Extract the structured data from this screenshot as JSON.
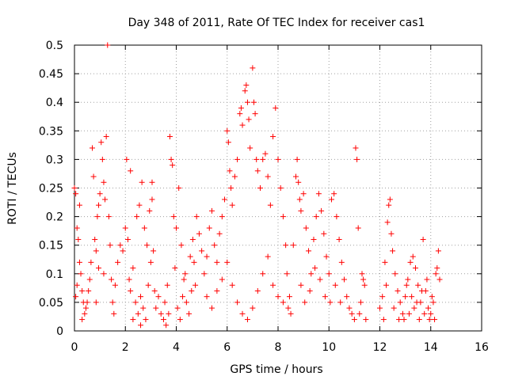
{
  "chart_data": {
    "type": "scatter",
    "title": "Day 348 of 2011, Rate Of TEC Index for receiver cas1",
    "xlabel": "GPS time / hours",
    "ylabel": "ROTI / TECUs",
    "xlim": [
      0,
      16
    ],
    "ylim": [
      0,
      0.5
    ],
    "xticks": [
      "0",
      "2",
      "4",
      "6",
      "8",
      "10",
      "12",
      "14",
      "16"
    ],
    "yticks": [
      "0",
      "0.05",
      "0.1",
      "0.15",
      "0.2",
      "0.25",
      "0.3",
      "0.35",
      "0.4",
      "0.45",
      "0.5"
    ],
    "grid": true,
    "marker": "+",
    "color": "#ff0000",
    "series": [
      {
        "name": "ROTI",
        "points": [
          [
            0.0,
            0.25
          ],
          [
            0.05,
            0.24
          ],
          [
            0.1,
            0.18
          ],
          [
            0.15,
            0.16
          ],
          [
            0.2,
            0.22
          ],
          [
            0.25,
            0.1
          ],
          [
            0.3,
            0.07
          ],
          [
            0.35,
            0.05
          ],
          [
            0.4,
            0.03
          ],
          [
            0.5,
            0.05
          ],
          [
            0.05,
            0.06
          ],
          [
            0.1,
            0.08
          ],
          [
            0.2,
            0.12
          ],
          [
            0.3,
            0.02
          ],
          [
            0.45,
            0.04
          ],
          [
            0.55,
            0.07
          ],
          [
            0.6,
            0.09
          ],
          [
            0.65,
            0.12
          ],
          [
            0.7,
            0.32
          ],
          [
            0.75,
            0.27
          ],
          [
            0.8,
            0.16
          ],
          [
            0.85,
            0.14
          ],
          [
            0.9,
            0.2
          ],
          [
            0.95,
            0.22
          ],
          [
            1.0,
            0.24
          ],
          [
            1.05,
            0.33
          ],
          [
            1.1,
            0.3
          ],
          [
            1.15,
            0.26
          ],
          [
            1.2,
            0.23
          ],
          [
            1.25,
            0.34
          ],
          [
            1.3,
            0.5
          ],
          [
            1.35,
            0.2
          ],
          [
            1.4,
            0.15
          ],
          [
            1.5,
            0.05
          ],
          [
            1.55,
            0.03
          ],
          [
            1.6,
            0.08
          ],
          [
            0.85,
            0.05
          ],
          [
            0.95,
            0.11
          ],
          [
            1.15,
            0.1
          ],
          [
            1.45,
            0.09
          ],
          [
            1.7,
            0.12
          ],
          [
            1.8,
            0.15
          ],
          [
            1.9,
            0.14
          ],
          [
            2.0,
            0.18
          ],
          [
            2.05,
            0.3
          ],
          [
            2.1,
            0.16
          ],
          [
            2.15,
            0.09
          ],
          [
            2.2,
            0.07
          ],
          [
            2.3,
            0.11
          ],
          [
            2.4,
            0.05
          ],
          [
            2.5,
            0.03
          ],
          [
            2.6,
            0.06
          ],
          [
            2.7,
            0.04
          ],
          [
            2.8,
            0.02
          ],
          [
            2.9,
            0.08
          ],
          [
            3.0,
            0.12
          ],
          [
            3.05,
            0.26
          ],
          [
            3.1,
            0.14
          ],
          [
            3.15,
            0.07
          ],
          [
            3.2,
            0.04
          ],
          [
            2.2,
            0.28
          ],
          [
            2.45,
            0.2
          ],
          [
            2.55,
            0.22
          ],
          [
            2.65,
            0.26
          ],
          [
            2.75,
            0.18
          ],
          [
            2.85,
            0.15
          ],
          [
            2.95,
            0.21
          ],
          [
            3.05,
            0.23
          ],
          [
            2.3,
            0.02
          ],
          [
            2.6,
            0.01
          ],
          [
            3.3,
            0.06
          ],
          [
            3.4,
            0.03
          ],
          [
            3.5,
            0.02
          ],
          [
            3.6,
            0.01
          ],
          [
            3.7,
            0.03
          ],
          [
            3.75,
            0.34
          ],
          [
            3.8,
            0.3
          ],
          [
            3.85,
            0.29
          ],
          [
            3.9,
            0.2
          ],
          [
            4.0,
            0.18
          ],
          [
            4.1,
            0.25
          ],
          [
            4.2,
            0.15
          ],
          [
            4.3,
            0.09
          ],
          [
            4.4,
            0.05
          ],
          [
            4.5,
            0.03
          ],
          [
            4.6,
            0.07
          ],
          [
            4.7,
            0.12
          ],
          [
            4.8,
            0.2
          ],
          [
            4.9,
            0.17
          ],
          [
            5.0,
            0.14
          ],
          [
            3.55,
            0.05
          ],
          [
            3.65,
            0.08
          ],
          [
            3.95,
            0.11
          ],
          [
            4.05,
            0.04
          ],
          [
            4.15,
            0.02
          ],
          [
            4.25,
            0.06
          ],
          [
            4.35,
            0.1
          ],
          [
            4.55,
            0.13
          ],
          [
            4.65,
            0.16
          ],
          [
            4.75,
            0.08
          ],
          [
            5.1,
            0.1
          ],
          [
            5.2,
            0.13
          ],
          [
            5.3,
            0.18
          ],
          [
            5.4,
            0.21
          ],
          [
            5.5,
            0.15
          ],
          [
            5.6,
            0.12
          ],
          [
            5.7,
            0.17
          ],
          [
            5.8,
            0.2
          ],
          [
            5.9,
            0.23
          ],
          [
            6.0,
            0.35
          ],
          [
            6.05,
            0.33
          ],
          [
            6.1,
            0.28
          ],
          [
            6.15,
            0.25
          ],
          [
            6.2,
            0.22
          ],
          [
            6.3,
            0.27
          ],
          [
            6.4,
            0.3
          ],
          [
            6.5,
            0.38
          ],
          [
            6.55,
            0.39
          ],
          [
            6.6,
            0.36
          ],
          [
            6.7,
            0.42
          ],
          [
            6.75,
            0.43
          ],
          [
            6.8,
            0.4
          ],
          [
            6.85,
            0.37
          ],
          [
            6.9,
            0.32
          ],
          [
            7.0,
            0.46
          ],
          [
            7.05,
            0.4
          ],
          [
            7.1,
            0.38
          ],
          [
            7.15,
            0.3
          ],
          [
            7.2,
            0.28
          ],
          [
            7.3,
            0.25
          ],
          [
            7.4,
            0.3
          ],
          [
            7.5,
            0.31
          ],
          [
            7.6,
            0.27
          ],
          [
            7.7,
            0.22
          ],
          [
            7.8,
            0.34
          ],
          [
            7.9,
            0.39
          ],
          [
            8.0,
            0.3
          ],
          [
            8.1,
            0.25
          ],
          [
            8.2,
            0.2
          ],
          [
            8.3,
            0.15
          ],
          [
            5.2,
            0.06
          ],
          [
            5.4,
            0.04
          ],
          [
            5.6,
            0.07
          ],
          [
            5.8,
            0.09
          ],
          [
            6.0,
            0.12
          ],
          [
            6.2,
            0.08
          ],
          [
            6.4,
            0.05
          ],
          [
            6.6,
            0.03
          ],
          [
            6.8,
            0.02
          ],
          [
            7.0,
            0.04
          ],
          [
            7.2,
            0.07
          ],
          [
            7.4,
            0.1
          ],
          [
            7.6,
            0.13
          ],
          [
            7.8,
            0.08
          ],
          [
            8.0,
            0.06
          ],
          [
            8.2,
            0.05
          ],
          [
            8.4,
            0.04
          ],
          [
            8.5,
            0.03
          ],
          [
            8.45,
            0.06
          ],
          [
            8.35,
            0.1
          ],
          [
            8.6,
            0.15
          ],
          [
            8.7,
            0.27
          ],
          [
            8.75,
            0.3
          ],
          [
            8.8,
            0.26
          ],
          [
            8.85,
            0.23
          ],
          [
            8.9,
            0.21
          ],
          [
            9.0,
            0.24
          ],
          [
            9.1,
            0.18
          ],
          [
            9.2,
            0.14
          ],
          [
            9.3,
            0.1
          ],
          [
            9.4,
            0.16
          ],
          [
            9.5,
            0.2
          ],
          [
            9.6,
            0.24
          ],
          [
            9.7,
            0.21
          ],
          [
            9.8,
            0.17
          ],
          [
            9.9,
            0.13
          ],
          [
            10.0,
            0.1
          ],
          [
            10.1,
            0.23
          ],
          [
            10.2,
            0.24
          ],
          [
            10.3,
            0.2
          ],
          [
            10.4,
            0.16
          ],
          [
            10.5,
            0.12
          ],
          [
            10.6,
            0.09
          ],
          [
            10.7,
            0.06
          ],
          [
            10.8,
            0.04
          ],
          [
            10.9,
            0.03
          ],
          [
            11.0,
            0.02
          ],
          [
            11.05,
            0.32
          ],
          [
            11.1,
            0.3
          ],
          [
            11.15,
            0.18
          ],
          [
            8.9,
            0.08
          ],
          [
            9.05,
            0.05
          ],
          [
            9.25,
            0.07
          ],
          [
            9.45,
            0.11
          ],
          [
            9.65,
            0.09
          ],
          [
            9.85,
            0.06
          ],
          [
            10.05,
            0.05
          ],
          [
            10.25,
            0.08
          ],
          [
            10.45,
            0.05
          ],
          [
            11.2,
            0.03
          ],
          [
            11.3,
            0.1
          ],
          [
            11.35,
            0.09
          ],
          [
            11.4,
            0.08
          ],
          [
            11.25,
            0.05
          ],
          [
            11.45,
            0.02
          ],
          [
            12.0,
            0.04
          ],
          [
            12.1,
            0.06
          ],
          [
            12.2,
            0.12
          ],
          [
            12.3,
            0.19
          ],
          [
            12.35,
            0.22
          ],
          [
            12.4,
            0.23
          ],
          [
            12.45,
            0.17
          ],
          [
            12.5,
            0.14
          ],
          [
            12.6,
            0.1
          ],
          [
            12.7,
            0.07
          ],
          [
            12.8,
            0.05
          ],
          [
            12.9,
            0.03
          ],
          [
            13.0,
            0.06
          ],
          [
            13.1,
            0.09
          ],
          [
            13.2,
            0.12
          ],
          [
            13.3,
            0.13
          ],
          [
            13.4,
            0.11
          ],
          [
            13.5,
            0.08
          ],
          [
            13.6,
            0.05
          ],
          [
            13.7,
            0.16
          ],
          [
            13.8,
            0.07
          ],
          [
            13.9,
            0.04
          ],
          [
            14.0,
            0.03
          ],
          [
            14.1,
            0.05
          ],
          [
            14.2,
            0.1
          ],
          [
            14.25,
            0.11
          ],
          [
            14.3,
            0.14
          ],
          [
            14.35,
            0.09
          ],
          [
            14.15,
            0.02
          ],
          [
            13.95,
            0.02
          ],
          [
            13.75,
            0.03
          ],
          [
            13.55,
            0.02
          ],
          [
            13.35,
            0.04
          ],
          [
            13.15,
            0.03
          ],
          [
            12.95,
            0.02
          ],
          [
            12.15,
            0.02
          ],
          [
            12.25,
            0.08
          ],
          [
            12.55,
            0.04
          ],
          [
            12.75,
            0.02
          ],
          [
            13.05,
            0.08
          ],
          [
            13.25,
            0.06
          ],
          [
            13.45,
            0.05
          ],
          [
            13.65,
            0.07
          ],
          [
            13.85,
            0.09
          ],
          [
            14.05,
            0.06
          ]
        ]
      }
    ]
  }
}
